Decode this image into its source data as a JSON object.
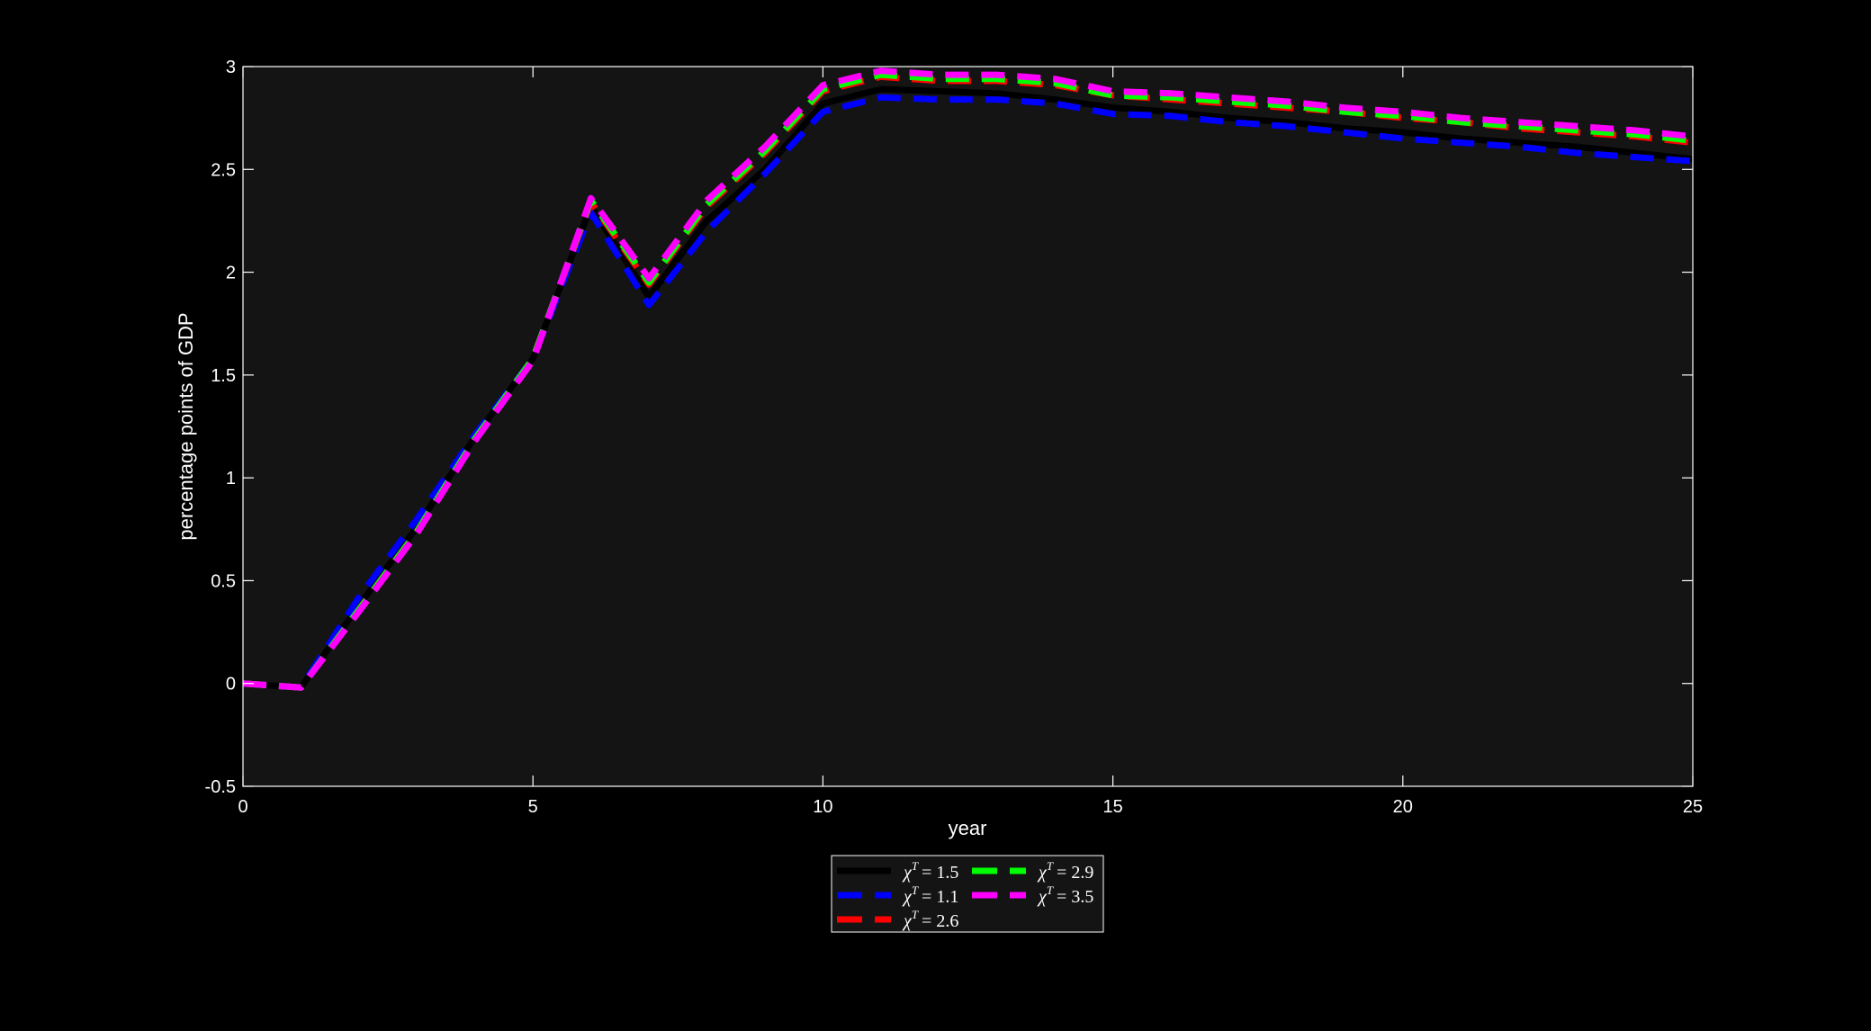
{
  "colors": {
    "page_background": "#000000",
    "plot_background": "#141414",
    "axis_color": "#ffffff",
    "text_color": "#ffffff"
  },
  "chart_data": {
    "type": "line",
    "title": "",
    "xlabel": "year",
    "ylabel": "percentage points of GDP",
    "xlim": [
      0,
      25
    ],
    "ylim": [
      -0.5,
      3
    ],
    "x_ticks": [
      0,
      5,
      10,
      15,
      20,
      25
    ],
    "x_tick_labels": [
      "0",
      "5",
      "10",
      "15",
      "20",
      "25"
    ],
    "y_ticks": [
      -0.5,
      0,
      0.5,
      1,
      1.5,
      2,
      2.5,
      3
    ],
    "y_tick_labels": [
      "-0.5",
      "0",
      "0.5",
      "1",
      "1.5",
      "2",
      "2.5",
      "3"
    ],
    "grid": false,
    "legend_position": "bottom-center",
    "x": [
      0,
      1,
      2,
      3,
      4,
      5,
      6,
      7,
      8,
      9,
      10,
      11,
      12,
      13,
      14,
      15,
      16,
      17,
      18,
      19,
      20,
      21,
      22,
      23,
      24,
      25
    ],
    "series": [
      {
        "name": "= 1.5",
        "legend_symbol": "χ",
        "legend_superscript": "T",
        "color": "#000000",
        "dash": "solid",
        "values": [
          0,
          -0.02,
          0.38,
          0.76,
          1.2,
          1.58,
          2.32,
          1.88,
          2.25,
          2.5,
          2.82,
          2.89,
          2.88,
          2.87,
          2.84,
          2.8,
          2.78,
          2.75,
          2.73,
          2.7,
          2.68,
          2.65,
          2.63,
          2.61,
          2.58,
          2.55
        ]
      },
      {
        "name": "= 1.1",
        "legend_symbol": "χ",
        "legend_superscript": "T",
        "color": "#0000ff",
        "dash": "dashed",
        "values": [
          0,
          -0.02,
          0.42,
          0.8,
          1.21,
          1.58,
          2.29,
          1.84,
          2.2,
          2.48,
          2.78,
          2.85,
          2.84,
          2.84,
          2.82,
          2.77,
          2.76,
          2.73,
          2.71,
          2.68,
          2.65,
          2.63,
          2.61,
          2.58,
          2.56,
          2.54
        ]
      },
      {
        "name": "= 2.6",
        "legend_symbol": "χ",
        "legend_superscript": "T",
        "color": "#ff0000",
        "dash": "dashed",
        "values": [
          0,
          -0.02,
          0.36,
          0.74,
          1.19,
          1.58,
          2.34,
          1.94,
          2.32,
          2.58,
          2.88,
          2.95,
          2.93,
          2.93,
          2.91,
          2.86,
          2.84,
          2.82,
          2.8,
          2.78,
          2.75,
          2.73,
          2.7,
          2.68,
          2.66,
          2.63
        ]
      },
      {
        "name": "= 2.9",
        "legend_symbol": "χ",
        "legend_superscript": "T",
        "color": "#00ff00",
        "dash": "dashed",
        "values": [
          0,
          -0.02,
          0.36,
          0.74,
          1.19,
          1.58,
          2.35,
          1.95,
          2.33,
          2.59,
          2.89,
          2.96,
          2.94,
          2.94,
          2.92,
          2.86,
          2.85,
          2.83,
          2.81,
          2.78,
          2.76,
          2.73,
          2.71,
          2.69,
          2.67,
          2.64
        ]
      },
      {
        "name": "= 3.5",
        "legend_symbol": "χ",
        "legend_superscript": "T",
        "color": "#ff00ff",
        "dash": "dashed",
        "values": [
          0,
          -0.02,
          0.35,
          0.73,
          1.18,
          1.57,
          2.36,
          1.97,
          2.35,
          2.61,
          2.91,
          2.98,
          2.96,
          2.96,
          2.94,
          2.88,
          2.87,
          2.85,
          2.83,
          2.8,
          2.78,
          2.75,
          2.73,
          2.71,
          2.69,
          2.66
        ]
      }
    ]
  }
}
